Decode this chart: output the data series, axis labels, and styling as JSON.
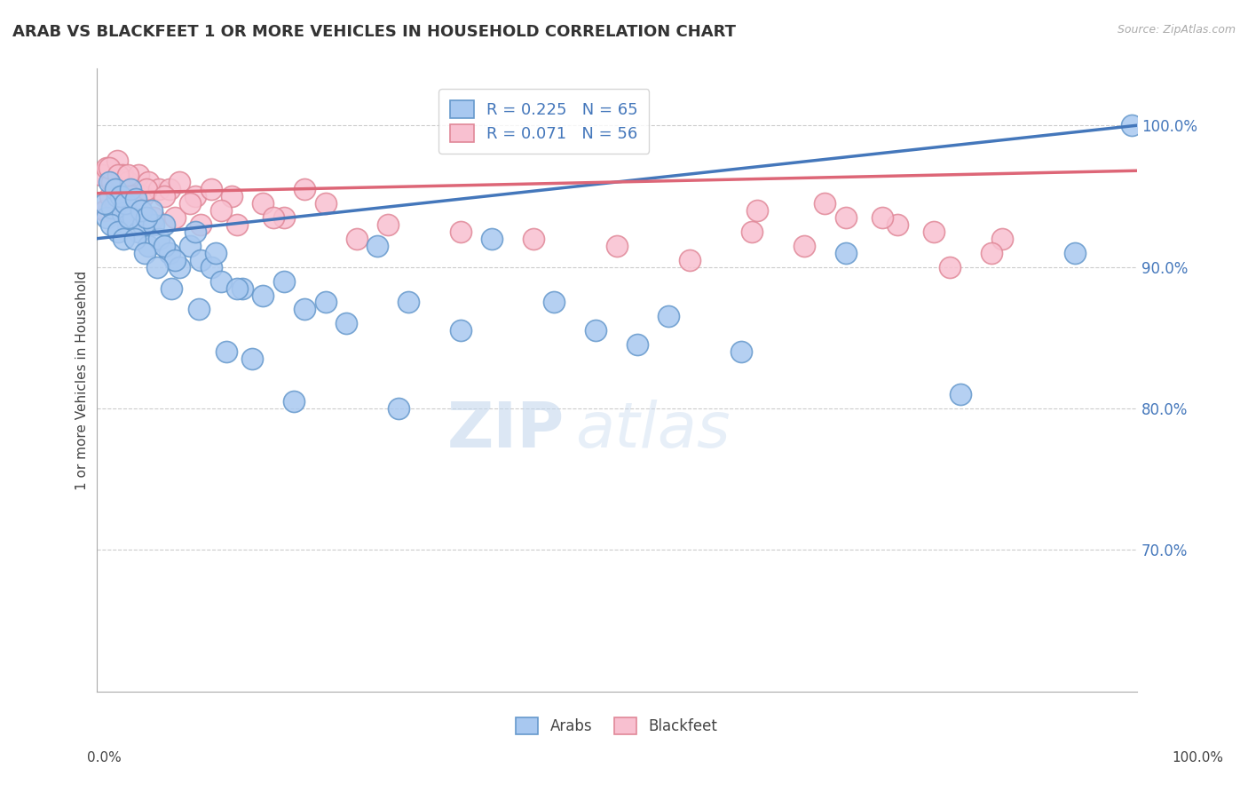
{
  "title": "ARAB VS BLACKFEET 1 OR MORE VEHICLES IN HOUSEHOLD CORRELATION CHART",
  "source_text": "Source: ZipAtlas.com",
  "ylabel": "1 or more Vehicles in Household",
  "xlim": [
    0.0,
    100.0
  ],
  "ylim": [
    60.0,
    104.0
  ],
  "yticks": [
    70.0,
    80.0,
    90.0,
    100.0
  ],
  "ytick_labels": [
    "70.0%",
    "80.0%",
    "90.0%",
    "100.0%"
  ],
  "arab_color": "#a8c8f0",
  "arab_edge_color": "#6699cc",
  "blackfeet_color": "#f8c0d0",
  "blackfeet_edge_color": "#e08898",
  "arab_line_color": "#4477bb",
  "blackfeet_line_color": "#dd6677",
  "arab_R": 0.225,
  "arab_N": 65,
  "blackfeet_R": 0.071,
  "blackfeet_N": 56,
  "legend_text_color": "#4477bb",
  "watermark_zip": "ZIP",
  "watermark_atlas": "atlas",
  "arab_x": [
    1.0,
    1.5,
    2.0,
    2.5,
    3.0,
    3.5,
    4.0,
    4.5,
    5.0,
    5.5,
    6.0,
    6.5,
    7.0,
    8.0,
    9.0,
    10.0,
    11.0,
    12.0,
    14.0,
    16.0,
    20.0,
    24.0,
    30.0,
    38.0,
    48.0,
    55.0,
    62.0,
    72.0,
    83.0,
    94.0,
    1.2,
    1.8,
    2.3,
    2.8,
    3.3,
    3.8,
    4.3,
    4.8,
    5.3,
    6.5,
    7.5,
    9.5,
    11.5,
    13.5,
    18.0,
    22.0,
    27.0,
    35.0,
    44.0,
    52.0,
    0.8,
    1.4,
    2.1,
    2.6,
    3.1,
    3.7,
    4.6,
    5.8,
    7.2,
    9.8,
    12.5,
    15.0,
    19.0,
    29.0,
    99.5
  ],
  "arab_y": [
    93.5,
    94.2,
    95.0,
    93.8,
    93.0,
    93.5,
    92.5,
    93.0,
    91.5,
    93.0,
    92.0,
    93.0,
    91.0,
    90.0,
    91.5,
    90.5,
    90.0,
    89.0,
    88.5,
    88.0,
    87.0,
    86.0,
    87.5,
    92.0,
    85.5,
    86.5,
    84.0,
    91.0,
    81.0,
    91.0,
    96.0,
    95.5,
    95.0,
    94.5,
    95.5,
    94.8,
    94.0,
    93.5,
    94.0,
    91.5,
    90.5,
    92.5,
    91.0,
    88.5,
    89.0,
    87.5,
    91.5,
    85.5,
    87.5,
    84.5,
    94.5,
    93.0,
    92.5,
    92.0,
    93.5,
    92.0,
    91.0,
    90.0,
    88.5,
    87.0,
    84.0,
    83.5,
    80.5,
    80.0,
    100.0
  ],
  "blackfeet_x": [
    0.5,
    1.0,
    1.5,
    2.0,
    2.5,
    3.0,
    3.5,
    4.0,
    4.5,
    5.0,
    6.0,
    7.0,
    8.0,
    9.5,
    11.0,
    13.0,
    16.0,
    20.0,
    0.8,
    1.3,
    1.8,
    2.3,
    2.8,
    3.3,
    4.2,
    5.5,
    7.5,
    10.0,
    13.5,
    18.0,
    1.2,
    2.1,
    3.0,
    4.8,
    6.5,
    9.0,
    12.0,
    17.0,
    25.0,
    63.0,
    68.0,
    72.0,
    77.0,
    82.0,
    87.0,
    63.5,
    70.0,
    75.5,
    80.5,
    86.0,
    22.0,
    28.0,
    35.0,
    42.0,
    50.0,
    57.0
  ],
  "blackfeet_y": [
    96.5,
    97.0,
    96.0,
    97.5,
    96.5,
    96.0,
    95.5,
    96.5,
    95.0,
    96.0,
    95.5,
    95.5,
    96.0,
    95.0,
    95.5,
    95.0,
    94.5,
    95.5,
    94.0,
    95.0,
    94.5,
    95.5,
    94.0,
    95.0,
    94.0,
    93.5,
    93.5,
    93.0,
    93.0,
    93.5,
    97.0,
    96.5,
    96.5,
    95.5,
    95.0,
    94.5,
    94.0,
    93.5,
    92.0,
    92.5,
    91.5,
    93.5,
    93.0,
    90.0,
    92.0,
    94.0,
    94.5,
    93.5,
    92.5,
    91.0,
    94.5,
    93.0,
    92.5,
    92.0,
    91.5,
    90.5
  ]
}
